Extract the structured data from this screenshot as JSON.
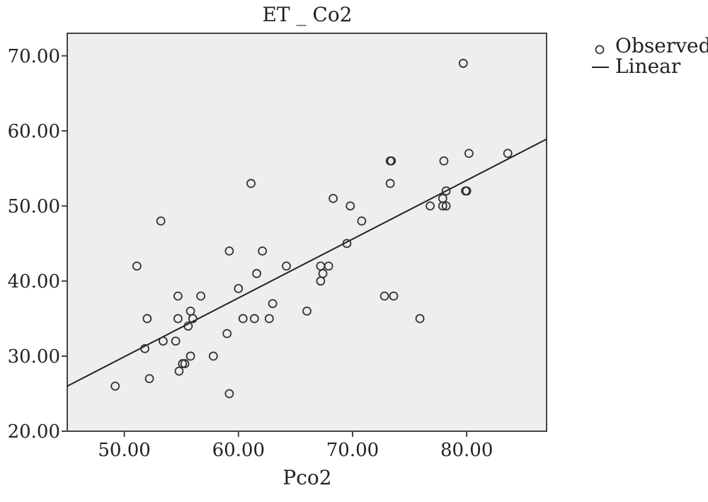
{
  "chart_data": {
    "type": "scatter",
    "title": "ET _ Co2",
    "xlabel": "Pco2",
    "ylabel": "",
    "xlim": [
      45,
      87
    ],
    "ylim": [
      20,
      73
    ],
    "x_ticks": [
      50,
      60,
      70,
      80
    ],
    "y_ticks": [
      20,
      30,
      40,
      50,
      60,
      70
    ],
    "x_tick_labels": [
      "50.00",
      "60.00",
      "70.00",
      "80.00"
    ],
    "y_tick_labels": [
      "20.00",
      "30.00",
      "40.00",
      "50.00",
      "60.00",
      "70.00"
    ],
    "grid": false,
    "legend_position": "top-right",
    "legend": [
      "Observed",
      "Linear"
    ],
    "series": [
      {
        "name": "Observed",
        "points": [
          [
            49.2,
            26
          ],
          [
            51.1,
            42
          ],
          [
            51.8,
            31
          ],
          [
            52.0,
            35
          ],
          [
            52.2,
            27
          ],
          [
            53.2,
            48
          ],
          [
            53.4,
            32
          ],
          [
            54.5,
            32
          ],
          [
            54.7,
            38
          ],
          [
            54.7,
            35
          ],
          [
            54.8,
            28
          ],
          [
            55.1,
            29
          ],
          [
            55.3,
            29
          ],
          [
            55.6,
            34
          ],
          [
            55.8,
            36
          ],
          [
            55.8,
            30
          ],
          [
            56.0,
            35
          ],
          [
            56.7,
            38
          ],
          [
            57.8,
            30
          ],
          [
            59.0,
            33
          ],
          [
            59.2,
            44
          ],
          [
            59.2,
            25
          ],
          [
            60.0,
            39
          ],
          [
            60.4,
            35
          ],
          [
            61.1,
            53
          ],
          [
            61.4,
            35
          ],
          [
            61.6,
            41
          ],
          [
            62.1,
            44
          ],
          [
            62.7,
            35
          ],
          [
            63.0,
            37
          ],
          [
            64.2,
            42
          ],
          [
            66.0,
            36
          ],
          [
            67.2,
            42
          ],
          [
            67.2,
            40
          ],
          [
            67.4,
            41
          ],
          [
            67.9,
            42
          ],
          [
            68.3,
            51
          ],
          [
            69.5,
            45
          ],
          [
            69.8,
            50
          ],
          [
            70.8,
            48
          ],
          [
            72.8,
            38
          ],
          [
            73.3,
            56
          ],
          [
            73.4,
            56
          ],
          [
            73.3,
            53
          ],
          [
            73.6,
            38
          ],
          [
            75.9,
            35
          ],
          [
            76.8,
            50
          ],
          [
            78.0,
            56
          ],
          [
            77.9,
            51
          ],
          [
            77.9,
            50
          ],
          [
            78.2,
            52
          ],
          [
            78.2,
            50
          ],
          [
            79.7,
            69
          ],
          [
            79.9,
            52
          ],
          [
            80.0,
            52
          ],
          [
            80.2,
            57
          ],
          [
            83.6,
            57
          ]
        ]
      },
      {
        "name": "Linear",
        "line": [
          [
            45,
            26.0
          ],
          [
            87,
            58.9
          ]
        ]
      }
    ]
  }
}
